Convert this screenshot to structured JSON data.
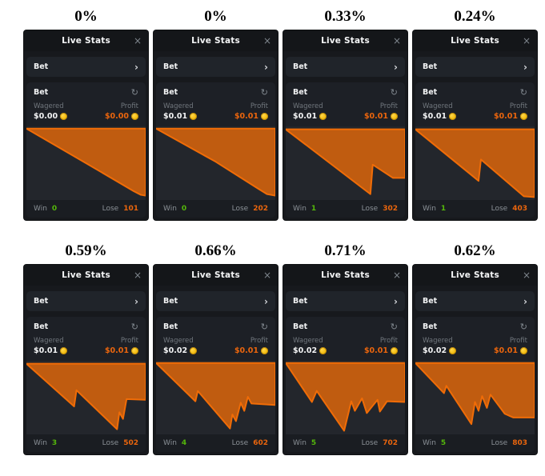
{
  "colors": {
    "page_background": "#ffffff",
    "panel_background": "#17191d",
    "chart_fill": "#c05c10",
    "chart_stroke": "#f06c07",
    "win_green": "#54b70b",
    "lose_orange": "#ea650d",
    "coin_gold": "#f3bb0c"
  },
  "panels": [
    {
      "pct": "0%",
      "title": "Live Stats",
      "close": "×",
      "bet1": {
        "label": "Bet",
        "chevron": "›"
      },
      "bet2": {
        "label": "Bet",
        "refresh": "↻"
      },
      "wagered_label": "Wagered",
      "wagered_value": "$0.00",
      "profit_label": "Profit",
      "profit_value": "$0.00",
      "win_label": "Win",
      "win_value": "0",
      "lose_label": "Lose",
      "lose_value": "101",
      "chart": {
        "type": "area",
        "line": [
          [
            0,
            3
          ],
          [
            50,
            50
          ],
          [
            90,
            88
          ],
          [
            96,
            93
          ],
          [
            100,
            94
          ]
        ]
      }
    },
    {
      "pct": "0%",
      "title": "Live Stats",
      "close": "×",
      "bet1": {
        "label": "Bet",
        "chevron": "›"
      },
      "bet2": {
        "label": "Bet",
        "refresh": "↻"
      },
      "wagered_label": "Wagered",
      "wagered_value": "$0.01",
      "profit_label": "Profit",
      "profit_value": "$0.01",
      "win_label": "Win",
      "win_value": "0",
      "lose_label": "Lose",
      "lose_value": "202",
      "chart": {
        "type": "area",
        "line": [
          [
            0,
            3
          ],
          [
            50,
            48
          ],
          [
            85,
            84
          ],
          [
            93,
            92
          ],
          [
            100,
            94
          ]
        ]
      }
    },
    {
      "pct": "0.33%",
      "title": "Live Stats",
      "close": "×",
      "bet1": {
        "label": "Bet",
        "chevron": "›"
      },
      "bet2": {
        "label": "Bet",
        "refresh": "↻"
      },
      "wagered_label": "Wagered",
      "wagered_value": "$0.01",
      "profit_label": "Profit",
      "profit_value": "$0.01",
      "win_label": "Win",
      "win_value": "1",
      "lose_label": "Lose",
      "lose_value": "302",
      "chart": {
        "type": "area",
        "line": [
          [
            0,
            4
          ],
          [
            71,
            92
          ],
          [
            73,
            52
          ],
          [
            90,
            70
          ],
          [
            100,
            70
          ]
        ]
      }
    },
    {
      "pct": "0.24%",
      "title": "Live Stats",
      "close": "×",
      "bet1": {
        "label": "Bet",
        "chevron": "›"
      },
      "bet2": {
        "label": "Bet",
        "refresh": "↻"
      },
      "wagered_label": "Wagered",
      "wagered_value": "$0.01",
      "profit_label": "Profit",
      "profit_value": "$0.01",
      "win_label": "Win",
      "win_value": "1",
      "lose_label": "Lose",
      "lose_value": "403",
      "chart": {
        "type": "area",
        "line": [
          [
            0,
            4
          ],
          [
            53,
            74
          ],
          [
            55,
            45
          ],
          [
            91,
            95
          ],
          [
            100,
            96
          ]
        ]
      }
    },
    {
      "pct": "0.59%",
      "title": "Live Stats",
      "close": "×",
      "bet1": {
        "label": "Bet",
        "chevron": "›"
      },
      "bet2": {
        "label": "Bet",
        "refresh": "↻"
      },
      "wagered_label": "Wagered",
      "wagered_value": "$0.01",
      "profit_label": "Profit",
      "profit_value": "$0.01",
      "win_label": "Win",
      "win_value": "3",
      "lose_label": "Lose",
      "lose_value": "502",
      "chart": {
        "type": "area",
        "line": [
          [
            0,
            4
          ],
          [
            40,
            62
          ],
          [
            42,
            40
          ],
          [
            76,
            93
          ],
          [
            78,
            70
          ],
          [
            81,
            79
          ],
          [
            84,
            52
          ],
          [
            100,
            53
          ]
        ]
      }
    },
    {
      "pct": "0.66%",
      "title": "Live Stats",
      "close": "×",
      "bet1": {
        "label": "Bet",
        "chevron": "›"
      },
      "bet2": {
        "label": "Bet",
        "refresh": "↻"
      },
      "wagered_label": "Wagered",
      "wagered_value": "$0.02",
      "profit_label": "Profit",
      "profit_value": "$0.01",
      "win_label": "Win",
      "win_value": "4",
      "lose_label": "Lose",
      "lose_value": "602",
      "chart": {
        "type": "area",
        "line": [
          [
            0,
            3
          ],
          [
            33,
            55
          ],
          [
            35,
            41
          ],
          [
            62,
            92
          ],
          [
            64,
            73
          ],
          [
            67,
            82
          ],
          [
            71,
            57
          ],
          [
            74,
            68
          ],
          [
            77,
            49
          ],
          [
            80,
            58
          ],
          [
            100,
            60
          ]
        ]
      }
    },
    {
      "pct": "0.71%",
      "title": "Live Stats",
      "close": "×",
      "bet1": {
        "label": "Bet",
        "chevron": "›"
      },
      "bet2": {
        "label": "Bet",
        "refresh": "↻"
      },
      "wagered_label": "Wagered",
      "wagered_value": "$0.02",
      "profit_label": "Profit",
      "profit_value": "$0.01",
      "win_label": "Win",
      "win_value": "5",
      "lose_label": "Lose",
      "lose_value": "702",
      "chart": {
        "type": "area",
        "line": [
          [
            0,
            3
          ],
          [
            22,
            56
          ],
          [
            26,
            41
          ],
          [
            49,
            95
          ],
          [
            55,
            55
          ],
          [
            58,
            68
          ],
          [
            64,
            51
          ],
          [
            68,
            71
          ],
          [
            77,
            53
          ],
          [
            79,
            69
          ],
          [
            85,
            55
          ],
          [
            100,
            56
          ]
        ]
      }
    },
    {
      "pct": "0.62%",
      "title": "Live Stats",
      "close": "×",
      "bet1": {
        "label": "Bet",
        "chevron": "›"
      },
      "bet2": {
        "label": "Bet",
        "refresh": "↻"
      },
      "wagered_label": "Wagered",
      "wagered_value": "$0.02",
      "profit_label": "Profit",
      "profit_value": "$0.01",
      "win_label": "Win",
      "win_value": "5",
      "lose_label": "Lose",
      "lose_value": "803",
      "chart": {
        "type": "area",
        "line": [
          [
            0,
            3
          ],
          [
            24,
            44
          ],
          [
            26,
            34
          ],
          [
            47,
            86
          ],
          [
            50,
            56
          ],
          [
            53,
            68
          ],
          [
            56,
            48
          ],
          [
            60,
            64
          ],
          [
            63,
            46
          ],
          [
            75,
            72
          ],
          [
            82,
            77
          ],
          [
            100,
            77
          ]
        ]
      }
    }
  ]
}
